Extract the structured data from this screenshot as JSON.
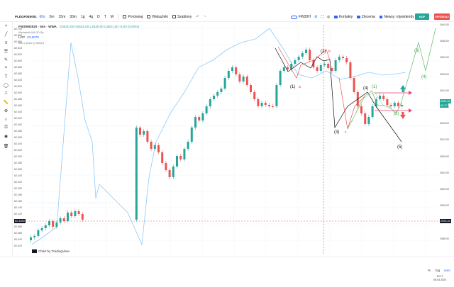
{
  "toolbar": {
    "symbol": "PLDGF0E0001",
    "timeframes": [
      "60s",
      "5m",
      "15m",
      "30m",
      "1g",
      "4g",
      "D",
      "T",
      "M"
    ],
    "active_timeframe": "60s",
    "compare_label": "Porównaj",
    "indicators_label": "Wskaźniki",
    "template_label": "Szablony",
    "ticker_label": "FW20H",
    "checks": [
      "Kontakty",
      "Zlecenia",
      "Newsy i dywidendy"
    ],
    "buy_label": "KUP",
    "sell_label": "SPRZEDAJ"
  },
  "legend": {
    "title": "FW20M2520 · 60s · WWA",
    "ohlc": "O2630,00  H2632,00  L2630,00  C2631,00  -0,00 (0,00%)",
    "line2": "Wskaźnik MA  20  Sp",
    "lop_label": "LOP",
    "lop_value": "63,5078",
    "line4": "MA 1 (linia 1) SMA 9"
  },
  "left_axis": {
    "ticks": [
      "62,700",
      "62,680",
      "62,660",
      "62,640",
      "62,620",
      "62,600",
      "62,580",
      "62,560",
      "62,540",
      "62,520",
      "62,500",
      "62,480",
      "62,460",
      "62,440",
      "62,420",
      "62,400",
      "62,380",
      "62,360",
      "62,340",
      "62,320",
      "62,300",
      "62,280",
      "62,260",
      "62,240",
      "62,220",
      "62,200",
      "62,180",
      "62,160",
      "62,140",
      "62,120",
      "62,100",
      "62,080",
      "62,060",
      "62,040",
      "62,020"
    ],
    "current": "62,4980"
  },
  "right_axis": {
    "ticks": [
      "2640,00",
      "2636,00",
      "2632,00",
      "2628,00",
      "2624,00",
      "2620,00",
      "2616,00",
      "2612,00",
      "2608,00",
      "2604,00",
      "2600,00",
      "2596,00",
      "2592,00",
      "2588,00"
    ],
    "price_tag": "2631,00",
    "price_tag2": "00:17",
    "price_tag_low": "2593,34"
  },
  "waves": {
    "labels_black": [
      "(1)",
      "(2)",
      "(3)",
      "(4)",
      "(5)"
    ],
    "labels_red": [
      "a",
      "b",
      "c"
    ],
    "labels_green": [
      "(1)",
      "(2)",
      "(3)",
      "(4)"
    ]
  },
  "credit": "Chart by TradingView",
  "bottom": {
    "pct": "%",
    "log": "log",
    "auto": "auto",
    "time": "10:17",
    "date": "06.03.2023"
  },
  "colors": {
    "up": "#26a69a",
    "down": "#ef5350",
    "ma": "#90caf9",
    "accent": "#2962ff"
  }
}
